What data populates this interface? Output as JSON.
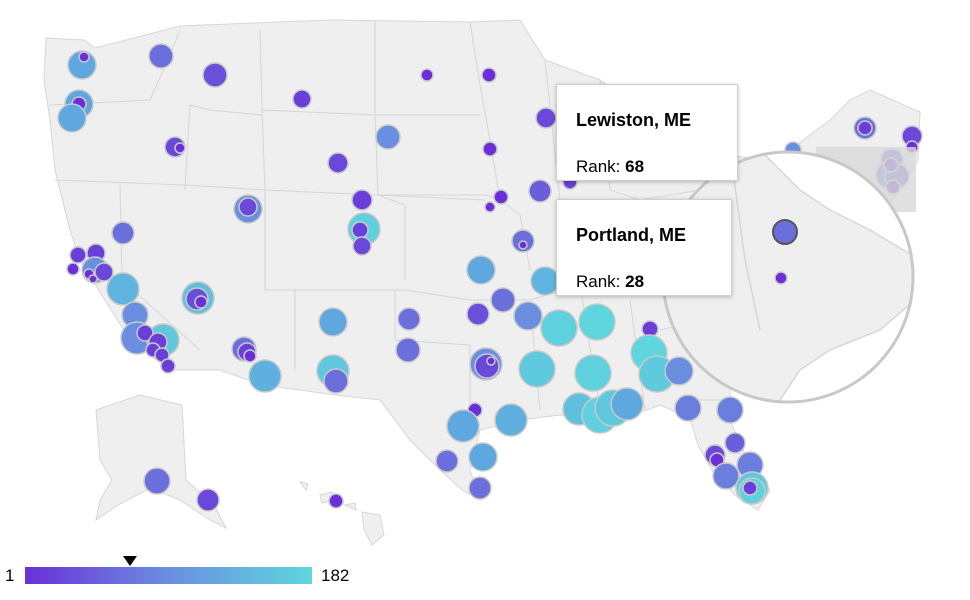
{
  "tooltips": [
    {
      "city": "Lewiston, ME",
      "rank_label": "Rank: ",
      "rank": "68"
    },
    {
      "city": "Portland, ME",
      "rank_label": "Rank: ",
      "rank": "28"
    }
  ],
  "legend": {
    "min_label": "1",
    "max_label": "182",
    "min": 1,
    "max": 182,
    "marker_value": 68
  },
  "colors": {
    "low": "#6a2fd9",
    "high": "#5fd6dd",
    "land": "#efefef",
    "border": "#d6d6d6",
    "bubble_stroke": "#c9c9c9"
  },
  "zoom_lens": {
    "state": "Maine",
    "selected_city": "Lewiston, ME"
  }
}
